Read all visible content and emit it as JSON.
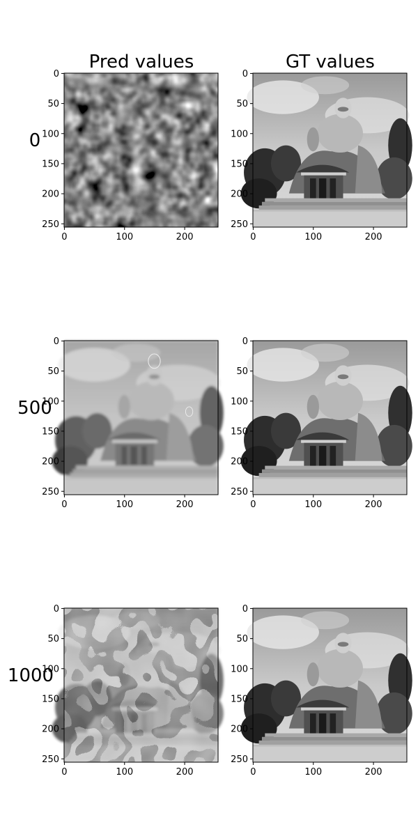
{
  "chart_data": {
    "type": "image_grid",
    "columns": [
      {
        "title": "Pred values"
      },
      {
        "title": "GT values"
      }
    ],
    "rows": [
      {
        "label": "0",
        "panels": [
          {
            "name": "pred-step-0",
            "content": "dark blurry noise field with bright blobs"
          },
          {
            "name": "gt-step-0",
            "content": "grayscale photo: large laughing Buddha statue on temple with trees and steps"
          }
        ]
      },
      {
        "label": "500",
        "panels": [
          {
            "name": "pred-step-500",
            "content": "blurred reconstruction of Buddha temple photo"
          },
          {
            "name": "gt-step-500",
            "content": "grayscale photo: large laughing Buddha statue on temple with trees and steps"
          }
        ]
      },
      {
        "label": "1000",
        "panels": [
          {
            "name": "pred-step-1000",
            "content": "noisy reconstruction with contour artifacts"
          },
          {
            "name": "gt-step-1000",
            "content": "grayscale photo: large laughing Buddha statue on temple with trees and steps"
          }
        ]
      }
    ],
    "image_size": [
      256,
      256
    ],
    "x_ticks": [
      0,
      100,
      200
    ],
    "y_ticks": [
      0,
      50,
      100,
      150,
      200,
      250
    ],
    "xlim": [
      0,
      256
    ],
    "ylim": [
      256,
      0
    ],
    "colormap": "gray"
  },
  "text": {
    "col_titles": [
      "Pred values",
      "GT values"
    ],
    "row_labels": [
      "0",
      "500",
      "1000"
    ],
    "x_tick_labels": [
      "0",
      "100",
      "200"
    ],
    "y_tick_labels": [
      "0",
      "50",
      "100",
      "150",
      "200",
      "250"
    ]
  }
}
